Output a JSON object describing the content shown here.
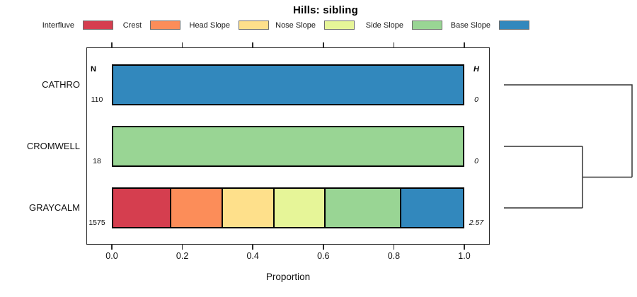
{
  "title": "Hills: sibling",
  "columns": {
    "n_header": "N",
    "h_header": "H"
  },
  "legend": {
    "items": [
      {
        "label": "Interfluve",
        "color": "#D53E4F"
      },
      {
        "label": "Crest",
        "color": "#FC8D59"
      },
      {
        "label": "Head Slope",
        "color": "#FEE08B"
      },
      {
        "label": "Nose Slope",
        "color": "#E6F598"
      },
      {
        "label": "Side Slope",
        "color": "#99D594"
      },
      {
        "label": "Base Slope",
        "color": "#3288BD"
      }
    ]
  },
  "chart_data": {
    "type": "bar",
    "orientation": "horizontal-stacked",
    "title": "Hills: sibling",
    "categories": [
      "CATHRO",
      "CROMWELL",
      "GRAYCALM"
    ],
    "series": [
      {
        "name": "Interfluve",
        "color": "#D53E4F",
        "values": [
          0,
          0,
          0.163
        ]
      },
      {
        "name": "Crest",
        "color": "#FC8D59",
        "values": [
          0,
          0,
          0.148
        ]
      },
      {
        "name": "Head Slope",
        "color": "#FEE08B",
        "values": [
          0,
          0,
          0.148
        ]
      },
      {
        "name": "Nose Slope",
        "color": "#E6F598",
        "values": [
          0,
          0,
          0.147
        ]
      },
      {
        "name": "Side Slope",
        "color": "#99D594",
        "values": [
          0,
          1.0,
          0.215
        ]
      },
      {
        "name": "Base Slope",
        "color": "#3288BD",
        "values": [
          1.0,
          0,
          0.179
        ]
      }
    ],
    "n_values": [
      "110",
      "18",
      "1575"
    ],
    "h_values": [
      "0",
      "0",
      "2.57"
    ],
    "xlabel": "Proportion",
    "x_ticks": [
      "0.0",
      "0.2",
      "0.4",
      "0.6",
      "0.8",
      "1.0"
    ],
    "xlim": [
      0,
      1
    ],
    "grid": false,
    "legend_position": "top",
    "dendrogram": {
      "axis": "right",
      "merges": [
        {
          "order": 1,
          "members": [
            "CROMWELL",
            "GRAYCALM"
          ]
        },
        {
          "order": 2,
          "members": [
            "CATHRO",
            "CROMWELL+GRAYCALM"
          ]
        }
      ]
    }
  }
}
